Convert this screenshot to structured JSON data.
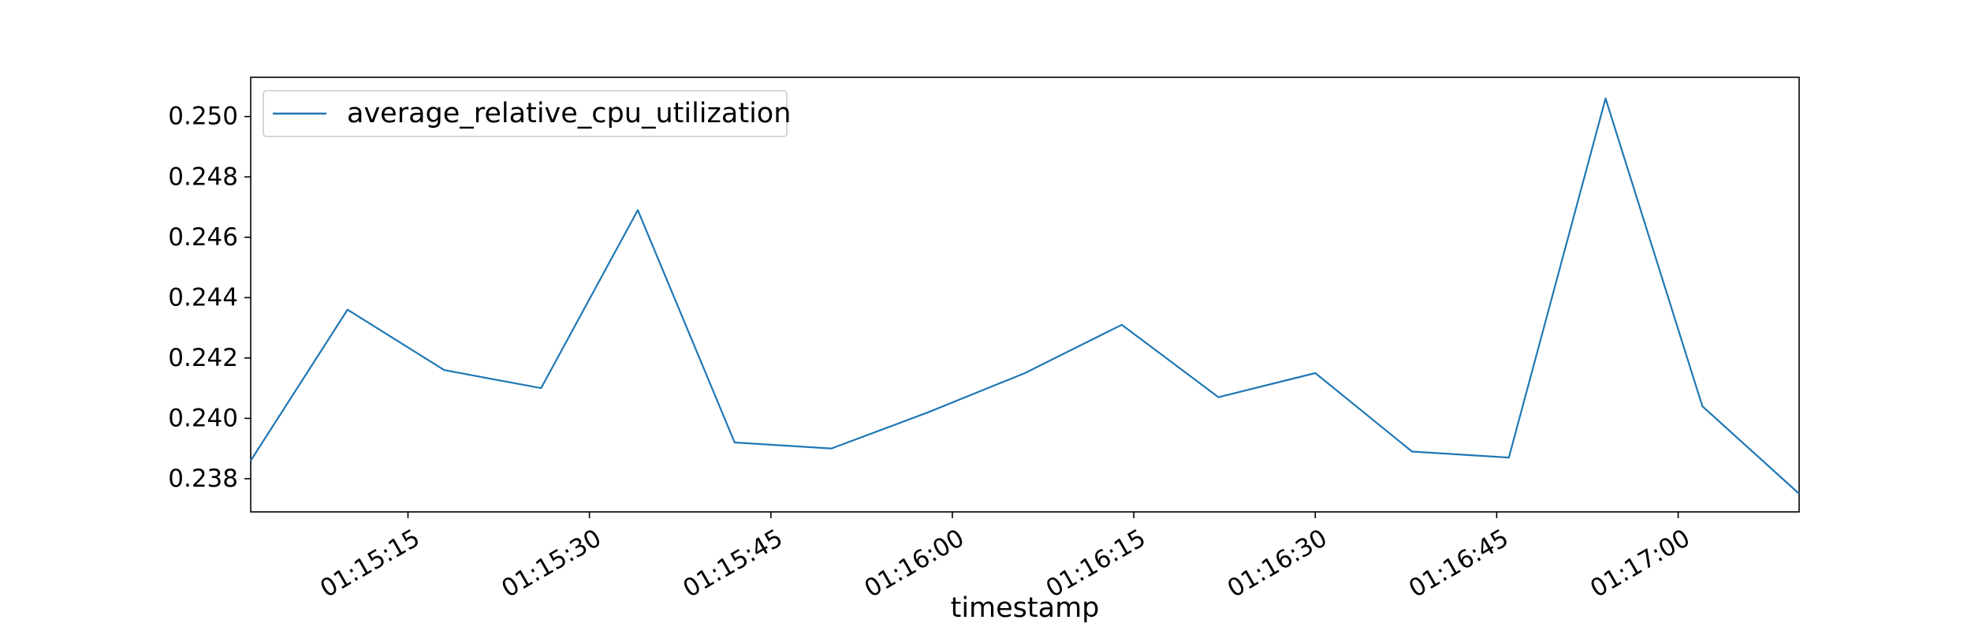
{
  "chart_data": {
    "type": "line",
    "title": "",
    "xlabel": "timestamp",
    "ylabel": "",
    "x": [
      "01:15:02",
      "01:15:10",
      "01:15:18",
      "01:15:26",
      "01:15:34",
      "01:15:42",
      "01:15:50",
      "01:15:58",
      "01:16:06",
      "01:16:14",
      "01:16:22",
      "01:16:30",
      "01:16:38",
      "01:16:46",
      "01:16:54",
      "01:17:02",
      "01:17:10"
    ],
    "series": [
      {
        "name": "average_relative_cpu_utilization",
        "color": "#1f77b4",
        "values": [
          0.2386,
          0.2436,
          0.2416,
          0.241,
          0.2469,
          0.2392,
          0.239,
          0.2402,
          0.2415,
          0.2431,
          0.2407,
          0.2415,
          0.2389,
          0.2387,
          0.2506,
          0.2404,
          0.2375
        ]
      }
    ],
    "xlim": [
      "01:15:02",
      "01:17:10"
    ],
    "ylim": [
      0.2369,
      0.2513
    ],
    "x_ticks": [
      "01:15:15",
      "01:15:30",
      "01:15:45",
      "01:16:00",
      "01:16:15",
      "01:16:30",
      "01:16:45",
      "01:17:00"
    ],
    "y_ticks": [
      "0.238",
      "0.240",
      "0.242",
      "0.244",
      "0.246",
      "0.248",
      "0.250"
    ],
    "grid": false,
    "legend_position": "top-left"
  }
}
